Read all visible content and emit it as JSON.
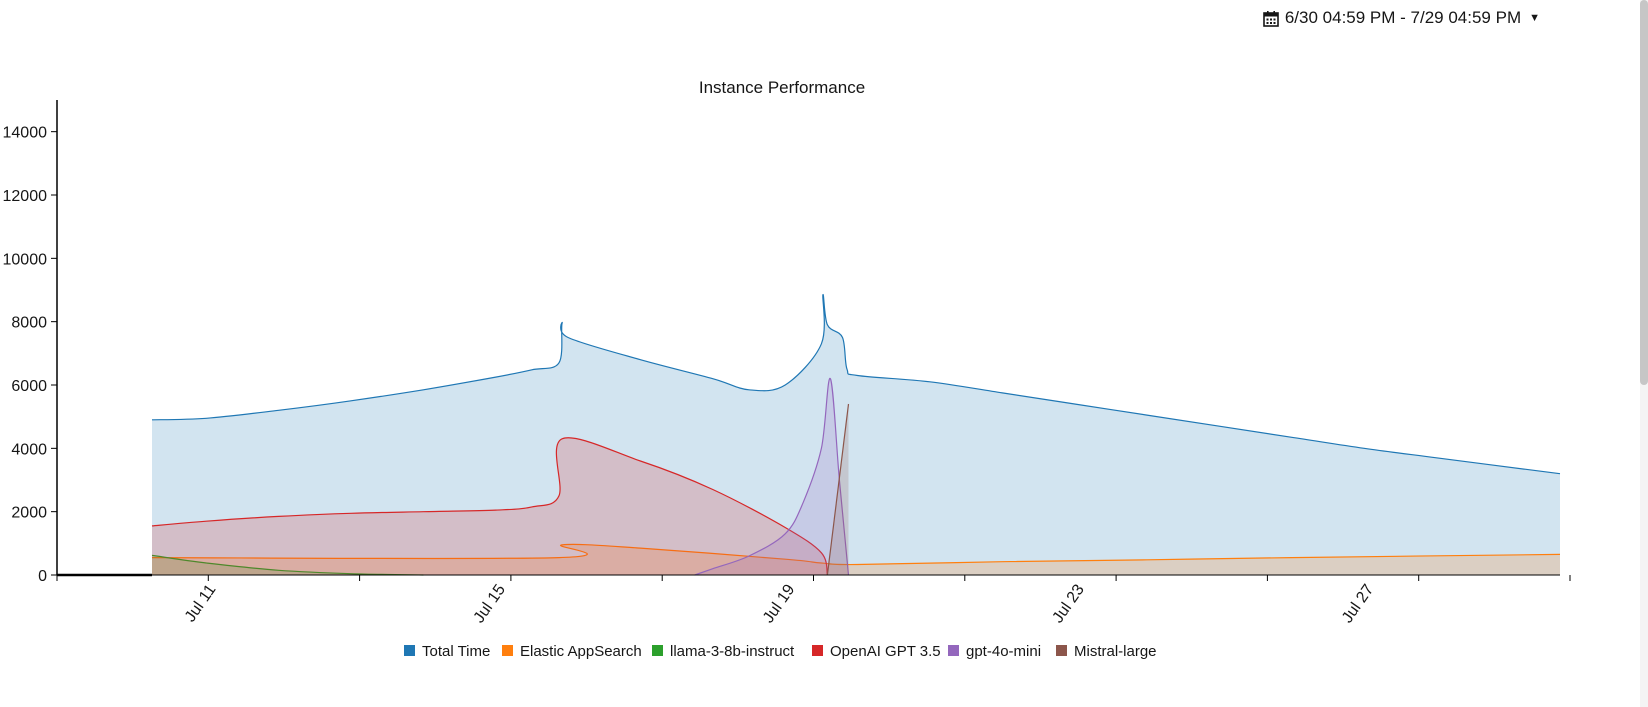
{
  "toolbar": {
    "date_range": "6/30 04:59 PM - 7/29 04:59 PM",
    "calendar_icon": "calendar-icon",
    "caret_icon": "caret-down-icon"
  },
  "chart_data": {
    "type": "area",
    "title": "Instance Performance",
    "xlabel": "",
    "ylabel": "",
    "x_ticks": [
      "Jul 11",
      "Jul 15",
      "Jul 19",
      "Jul 23",
      "Jul 27"
    ],
    "y_ticks": [
      0,
      2000,
      4000,
      6000,
      8000,
      10000,
      12000,
      14000
    ],
    "ylim": [
      0,
      15000
    ],
    "xlim": [
      "2024-07-10T06:00",
      "2024-07-29T16:59"
    ],
    "legend_position": "bottom",
    "grid": false,
    "series": [
      {
        "name": "Total Time",
        "color": "#1f77b4",
        "x": [
          "2024-07-10T06:00",
          "2024-07-11",
          "2024-07-12",
          "2024-07-13",
          "2024-07-14",
          "2024-07-15",
          "2024-07-15T12:00",
          "2024-07-15T21:00",
          "2024-07-15T22:00",
          "2024-07-16",
          "2024-07-17",
          "2024-07-18",
          "2024-07-18T12:00",
          "2024-07-19",
          "2024-07-19T12:00",
          "2024-07-19T12:30",
          "2024-07-19T14:00",
          "2024-07-19T19:00",
          "2024-07-19T20:30",
          "2024-07-20",
          "2024-07-21",
          "2024-07-22",
          "2024-07-23",
          "2024-07-24",
          "2024-07-25",
          "2024-07-26",
          "2024-07-27",
          "2024-07-28",
          "2024-07-29T16:59"
        ],
        "values": [
          4900,
          4950,
          5200,
          5500,
          5850,
          6250,
          6480,
          6700,
          7950,
          7500,
          6800,
          6200,
          5850,
          6000,
          7300,
          8850,
          7900,
          7500,
          6500,
          6300,
          6100,
          5750,
          5400,
          5050,
          4700,
          4350,
          4000,
          3700,
          3200
        ]
      },
      {
        "name": "Elastic AppSearch",
        "color": "#ff7f0e",
        "x": [
          "2024-07-10T06:00",
          "2024-07-15T21:00",
          "2024-07-15T22:00",
          "2024-07-17",
          "2024-07-19",
          "2024-07-19T12:00",
          "2024-07-20",
          "2024-07-22",
          "2024-07-24",
          "2024-07-26",
          "2024-07-29T16:59"
        ],
        "values": [
          550,
          550,
          950,
          850,
          500,
          380,
          330,
          420,
          480,
          550,
          650
        ]
      },
      {
        "name": "llama-3-8b-instruct",
        "color": "#2ca02c",
        "x": [
          "2024-07-10T06:00",
          "2024-07-11",
          "2024-07-12",
          "2024-07-13",
          "2024-07-14"
        ],
        "values": [
          620,
          380,
          150,
          40,
          0
        ]
      },
      {
        "name": "OpenAI GPT 3.5",
        "color": "#d62728",
        "x": [
          "2024-07-10T06:00",
          "2024-07-11",
          "2024-07-12",
          "2024-07-13",
          "2024-07-14",
          "2024-07-15",
          "2024-07-15T12:00",
          "2024-07-15T21:00",
          "2024-07-15T22:00",
          "2024-07-17",
          "2024-07-18",
          "2024-07-19",
          "2024-07-19T12:00",
          "2024-07-19T14:00"
        ],
        "values": [
          1550,
          1700,
          1850,
          1950,
          2000,
          2050,
          2150,
          2500,
          4300,
          3600,
          2700,
          1500,
          700,
          0
        ]
      },
      {
        "name": "gpt-4o-mini",
        "color": "#9467bd",
        "x": [
          "2024-07-17T18:00",
          "2024-07-18",
          "2024-07-18T12:00",
          "2024-07-19",
          "2024-07-19T06:00",
          "2024-07-19T12:00",
          "2024-07-19T15:00",
          "2024-07-19T18:00",
          "2024-07-19T21:00"
        ],
        "values": [
          0,
          200,
          600,
          1300,
          2300,
          4000,
          6200,
          3000,
          0
        ]
      },
      {
        "name": "Mistral-large",
        "color": "#8c564b",
        "x": [
          "2024-07-19T14:00",
          "2024-07-19T21:00"
        ],
        "values": [
          0,
          5400
        ]
      }
    ]
  }
}
